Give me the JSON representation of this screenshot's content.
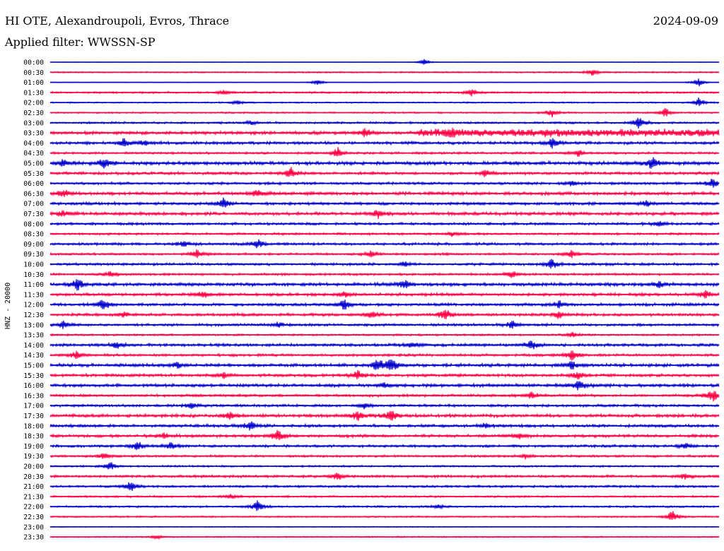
{
  "header": {
    "station": "HI OTE, Alexandroupoli, Evros, Thrace",
    "date": "2024-09-09",
    "filter": "Applied filter: WWSSN-SP"
  },
  "chart_data": {
    "type": "line",
    "title": "HI OTE, Alexandroupoli, Evros, Thrace",
    "ylabel": "HNZ - 20000",
    "xlabel": "",
    "row_labels": [
      "00:00",
      "00:30",
      "01:00",
      "01:30",
      "02:00",
      "02:30",
      "03:00",
      "03:30",
      "04:00",
      "04:30",
      "05:00",
      "05:30",
      "06:00",
      "06:30",
      "07:00",
      "07:30",
      "08:00",
      "08:30",
      "09:00",
      "09:30",
      "10:00",
      "10:30",
      "11:00",
      "11:30",
      "12:00",
      "12:30",
      "13:00",
      "13:30",
      "14:00",
      "14:30",
      "15:00",
      "15:30",
      "16:00",
      "16:30",
      "17:00",
      "17:30",
      "18:00",
      "18:30",
      "19:00",
      "19:30",
      "20:00",
      "20:30",
      "21:00",
      "21:30",
      "22:00",
      "22:30",
      "23:00",
      "23:30"
    ],
    "colors": [
      "#0000cc",
      "#ff0044"
    ],
    "rows": [
      {
        "noise": 0.3,
        "events": [
          [
            0.56,
            4.5
          ]
        ]
      },
      {
        "noise": 0.9,
        "events": [
          [
            0.81,
            5
          ]
        ]
      },
      {
        "noise": 0.4,
        "events": [
          [
            0.4,
            4
          ],
          [
            0.97,
            6
          ]
        ]
      },
      {
        "noise": 1.2,
        "events": [
          [
            0.63,
            5
          ],
          [
            0.26,
            4
          ]
        ]
      },
      {
        "noise": 0.9,
        "events": [
          [
            0.97,
            7
          ],
          [
            0.28,
            3
          ]
        ]
      },
      {
        "noise": 1.0,
        "events": [
          [
            0.75,
            6
          ],
          [
            0.92,
            7
          ]
        ]
      },
      {
        "noise": 1.3,
        "events": [
          [
            0.88,
            9
          ],
          [
            0.3,
            3
          ]
        ]
      },
      {
        "noise": 2.0,
        "events": [
          [
            0.47,
            7
          ],
          [
            0.6,
            6
          ]
        ],
        "bursts": [
          [
            0.55,
            1.0,
            3.5
          ]
        ]
      },
      {
        "noise": 1.8,
        "events": [
          [
            0.11,
            7
          ],
          [
            0.75,
            9
          ],
          [
            0.14,
            4
          ]
        ]
      },
      {
        "noise": 1.4,
        "events": [
          [
            0.43,
            8
          ],
          [
            0.79,
            5
          ]
        ]
      },
      {
        "noise": 2.2,
        "events": [
          [
            0.08,
            8
          ],
          [
            0.9,
            9
          ],
          [
            0.02,
            5
          ]
        ]
      },
      {
        "noise": 1.8,
        "events": [
          [
            0.36,
            8
          ],
          [
            0.65,
            5
          ]
        ]
      },
      {
        "noise": 1.6,
        "events": [
          [
            0.99,
            6
          ],
          [
            0.78,
            4
          ]
        ]
      },
      {
        "noise": 2.0,
        "events": [
          [
            0.02,
            7
          ],
          [
            0.31,
            7
          ]
        ]
      },
      {
        "noise": 1.8,
        "events": [
          [
            0.26,
            9
          ],
          [
            0.89,
            5
          ]
        ]
      },
      {
        "noise": 2.0,
        "events": [
          [
            0.49,
            6
          ],
          [
            0.02,
            5
          ]
        ]
      },
      {
        "noise": 1.6,
        "events": [
          [
            0.91,
            4
          ]
        ]
      },
      {
        "noise": 1.4,
        "events": [
          [
            0.6,
            3
          ]
        ]
      },
      {
        "noise": 1.6,
        "events": [
          [
            0.31,
            7
          ],
          [
            0.2,
            4
          ]
        ]
      },
      {
        "noise": 1.4,
        "events": [
          [
            0.22,
            7
          ],
          [
            0.48,
            5
          ],
          [
            0.78,
            6
          ]
        ]
      },
      {
        "noise": 1.6,
        "events": [
          [
            0.75,
            8
          ],
          [
            0.53,
            4
          ]
        ]
      },
      {
        "noise": 1.4,
        "events": [
          [
            0.69,
            5
          ],
          [
            0.09,
            4
          ]
        ]
      },
      {
        "noise": 2.0,
        "events": [
          [
            0.04,
            9
          ],
          [
            0.53,
            7
          ],
          [
            0.91,
            5
          ]
        ]
      },
      {
        "noise": 1.8,
        "events": [
          [
            0.98,
            6
          ],
          [
            0.23,
            5
          ],
          [
            0.44,
            4
          ]
        ]
      },
      {
        "noise": 1.8,
        "events": [
          [
            0.08,
            9
          ],
          [
            0.44,
            8
          ],
          [
            0.76,
            6
          ]
        ]
      },
      {
        "noise": 1.8,
        "events": [
          [
            0.59,
            9
          ],
          [
            0.48,
            6
          ],
          [
            0.76,
            5
          ],
          [
            0.11,
            4
          ]
        ]
      },
      {
        "noise": 1.6,
        "events": [
          [
            0.02,
            6
          ],
          [
            0.69,
            6
          ],
          [
            0.34,
            4
          ]
        ]
      },
      {
        "noise": 1.2,
        "events": [
          [
            0.78,
            4
          ]
        ]
      },
      {
        "noise": 1.8,
        "events": [
          [
            0.72,
            7
          ],
          [
            0.54,
            5
          ],
          [
            0.1,
            4
          ]
        ]
      },
      {
        "noise": 1.6,
        "events": [
          [
            0.04,
            6
          ],
          [
            0.78,
            8
          ]
        ]
      },
      {
        "noise": 2.0,
        "events": [
          [
            0.49,
            10
          ],
          [
            0.51,
            11
          ],
          [
            0.19,
            4
          ],
          [
            0.78,
            6
          ]
        ]
      },
      {
        "noise": 1.8,
        "events": [
          [
            0.46,
            7
          ],
          [
            0.26,
            4
          ],
          [
            0.79,
            6
          ]
        ]
      },
      {
        "noise": 2.0,
        "events": [
          [
            0.79,
            8
          ],
          [
            0.5,
            4
          ]
        ]
      },
      {
        "noise": 1.6,
        "events": [
          [
            0.99,
            11
          ],
          [
            0.72,
            5
          ]
        ]
      },
      {
        "noise": 1.6,
        "events": [
          [
            0.21,
            5
          ],
          [
            0.47,
            4
          ]
        ]
      },
      {
        "noise": 2.0,
        "events": [
          [
            0.46,
            8
          ],
          [
            0.51,
            9
          ],
          [
            0.27,
            6
          ]
        ]
      },
      {
        "noise": 1.8,
        "events": [
          [
            0.3,
            8
          ],
          [
            0.65,
            4
          ]
        ]
      },
      {
        "noise": 1.8,
        "events": [
          [
            0.34,
            10
          ],
          [
            0.7,
            5
          ],
          [
            0.17,
            4
          ]
        ]
      },
      {
        "noise": 1.6,
        "events": [
          [
            0.13,
            8
          ],
          [
            0.18,
            6
          ],
          [
            0.95,
            5
          ]
        ]
      },
      {
        "noise": 1.4,
        "events": [
          [
            0.08,
            5
          ],
          [
            0.71,
            4
          ]
        ]
      },
      {
        "noise": 1.2,
        "events": [
          [
            0.09,
            6
          ]
        ]
      },
      {
        "noise": 1.6,
        "events": [
          [
            0.43,
            7
          ],
          [
            0.95,
            5
          ]
        ]
      },
      {
        "noise": 1.4,
        "events": [
          [
            0.12,
            9
          ]
        ]
      },
      {
        "noise": 1.2,
        "events": [
          [
            0.27,
            4
          ]
        ]
      },
      {
        "noise": 1.2,
        "events": [
          [
            0.31,
            9
          ],
          [
            0.58,
            3
          ]
        ]
      },
      {
        "noise": 1.0,
        "events": [
          [
            0.93,
            10
          ]
        ]
      },
      {
        "noise": 0.6,
        "events": []
      },
      {
        "noise": 0.8,
        "events": [
          [
            0.16,
            3
          ]
        ]
      }
    ]
  }
}
